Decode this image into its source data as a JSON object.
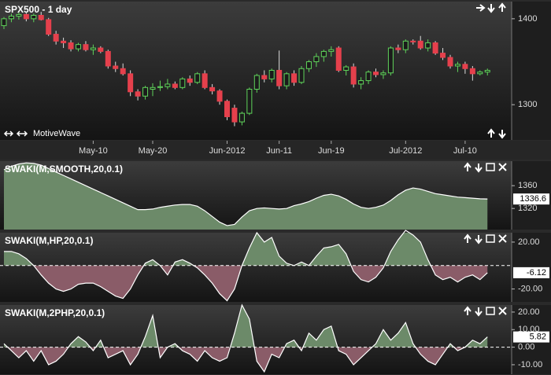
{
  "chart_data": [
    {
      "type": "candlestick",
      "title": "SPX500 - 1 day",
      "watermark": "MotiveWave",
      "categories": [
        null,
        null,
        null,
        null,
        null,
        null,
        null,
        null,
        null,
        null,
        null,
        null,
        "May-10",
        null,
        null,
        null,
        null,
        null,
        null,
        null,
        "May-20",
        null,
        null,
        null,
        null,
        null,
        null,
        null,
        null,
        null,
        "Jun-2012",
        null,
        null,
        null,
        null,
        null,
        null,
        "Jun-11",
        null,
        null,
        null,
        null,
        null,
        null,
        "Jun-19",
        null,
        null,
        null,
        null,
        null,
        null,
        null,
        null,
        null,
        "Jul-2012",
        null,
        null,
        null,
        null,
        null,
        null,
        null,
        "Jul-10",
        null,
        null,
        null
      ],
      "open": [
        1392,
        1400,
        1403,
        1405,
        1400,
        1404,
        1399,
        1382,
        1374,
        1372,
        1365,
        1370,
        1364,
        1366,
        1362,
        1345,
        1342,
        1336,
        1315,
        1310,
        1318,
        1320,
        1321,
        1324,
        1320,
        1330,
        1326,
        1336,
        1320,
        1316,
        1304,
        1296,
        1280,
        1290,
        1318,
        1334,
        1330,
        1340,
        1322,
        1336,
        1326,
        1342,
        1350,
        1356,
        1362,
        1366,
        1340,
        1344,
        1324,
        1328,
        1338,
        1335,
        1337,
        1366,
        1364,
        1374,
        1374,
        1366,
        1372,
        1360,
        1355,
        1345,
        1347,
        1342,
        1336,
        1338
      ],
      "high": [
        1402,
        1406,
        1408,
        1407,
        1406,
        1408,
        1401,
        1386,
        1378,
        1375,
        1372,
        1374,
        1370,
        1368,
        1364,
        1350,
        1348,
        1340,
        1318,
        1322,
        1325,
        1328,
        1330,
        1327,
        1332,
        1334,
        1338,
        1340,
        1324,
        1318,
        1306,
        1300,
        1292,
        1320,
        1336,
        1340,
        1342,
        1363,
        1338,
        1340,
        1345,
        1352,
        1360,
        1364,
        1368,
        1368,
        1346,
        1348,
        1332,
        1340,
        1342,
        1340,
        1368,
        1370,
        1376,
        1376,
        1380,
        1376,
        1374,
        1366,
        1358,
        1350,
        1350,
        1345,
        1340,
        1342
      ],
      "low": [
        1388,
        1396,
        1399,
        1397,
        1396,
        1398,
        1380,
        1370,
        1366,
        1362,
        1362,
        1362,
        1358,
        1360,
        1342,
        1338,
        1334,
        1310,
        1305,
        1306,
        1310,
        1316,
        1318,
        1318,
        1318,
        1322,
        1324,
        1318,
        1312,
        1300,
        1282,
        1275,
        1276,
        1288,
        1314,
        1326,
        1326,
        1318,
        1318,
        1322,
        1324,
        1338,
        1344,
        1350,
        1356,
        1338,
        1334,
        1320,
        1318,
        1324,
        1332,
        1330,
        1334,
        1360,
        1360,
        1370,
        1364,
        1362,
        1358,
        1352,
        1342,
        1338,
        1336,
        1328,
        1334,
        1334
      ],
      "close": [
        1400,
        1403,
        1405,
        1400,
        1404,
        1399,
        1382,
        1374,
        1372,
        1365,
        1370,
        1364,
        1366,
        1362,
        1345,
        1342,
        1336,
        1315,
        1310,
        1320,
        1320,
        1321,
        1324,
        1320,
        1330,
        1326,
        1336,
        1320,
        1316,
        1304,
        1286,
        1280,
        1290,
        1318,
        1334,
        1330,
        1340,
        1322,
        1336,
        1326,
        1342,
        1350,
        1356,
        1362,
        1364,
        1340,
        1344,
        1324,
        1328,
        1338,
        1335,
        1337,
        1366,
        1364,
        1374,
        1373,
        1366,
        1372,
        1360,
        1355,
        1345,
        1347,
        1342,
        1336,
        1338,
        1340
      ],
      "ylim": [
        1259,
        1420
      ],
      "yticks": [
        1300,
        1400
      ],
      "colors": {
        "up": "#5fd35a",
        "down": "#e5404c"
      }
    },
    {
      "type": "area",
      "title": "SWAKI(M,SMOOTH,20,0.1)",
      "values": [
        1388,
        1394,
        1398,
        1400,
        1399,
        1396,
        1390,
        1384,
        1378,
        1372,
        1366,
        1360,
        1354,
        1348,
        1342,
        1336,
        1330,
        1324,
        1318,
        1318,
        1319,
        1322,
        1324,
        1326,
        1327,
        1327,
        1324,
        1316,
        1306,
        1296,
        1290,
        1292,
        1305,
        1316,
        1320,
        1321,
        1320,
        1319,
        1320,
        1325,
        1328,
        1332,
        1338,
        1343,
        1345,
        1342,
        1336,
        1328,
        1322,
        1320,
        1322,
        1326,
        1334,
        1344,
        1352,
        1356,
        1354,
        1350,
        1346,
        1344,
        1342,
        1340,
        1339,
        1338,
        1337,
        1336.6
      ],
      "ylim": [
        1283,
        1403
      ],
      "yticks": [
        1320,
        1360
      ],
      "colors": {
        "line": "#ffffff",
        "above": "#6c8a69"
      }
    },
    {
      "type": "area",
      "title": "SWAKI(M,HP,20,0.1)",
      "values": [
        12,
        12,
        10,
        6,
        0,
        -8,
        -15,
        -20,
        -22,
        -20,
        -16,
        -15,
        -15,
        -18,
        -22,
        -26,
        -28,
        -20,
        -8,
        2,
        5,
        0,
        -8,
        3,
        5,
        2,
        -2,
        -8,
        -15,
        -24,
        -30,
        -20,
        0,
        15,
        28,
        20,
        24,
        8,
        2,
        0,
        3,
        0,
        8,
        15,
        16,
        18,
        10,
        -5,
        -12,
        -14,
        -10,
        -2,
        12,
        22,
        30,
        26,
        20,
        5,
        -8,
        -12,
        -10,
        -14,
        -10,
        -8,
        -12,
        -6.12
      ],
      "ylim": [
        -31,
        28
      ],
      "yticks": [
        {
          "value": -20,
          "label": "-20.00"
        },
        {
          "value": 20,
          "label": "20.00"
        }
      ],
      "reference_line": 0,
      "colors": {
        "line": "#ffffff",
        "above": "#6c8a69",
        "below": "#8a5c68"
      }
    },
    {
      "type": "area",
      "title": "SWAKI(M,2PHP,20,0.1)",
      "values": [
        2,
        -2,
        -6,
        -2,
        -8,
        -2,
        -10,
        -8,
        -4,
        2,
        6,
        3,
        -2,
        4,
        -6,
        -4,
        -2,
        -10,
        -4,
        6,
        18,
        -6,
        0,
        2,
        -2,
        -4,
        -8,
        -2,
        -6,
        -8,
        -6,
        8,
        24,
        16,
        -8,
        -14,
        -4,
        -6,
        2,
        4,
        -2,
        8,
        4,
        10,
        12,
        -2,
        -4,
        -10,
        -6,
        -2,
        2,
        10,
        4,
        8,
        14,
        2,
        -4,
        -8,
        -10,
        -4,
        2,
        -2,
        0,
        4,
        2,
        5.82
      ],
      "ylim": [
        -15.4,
        24
      ],
      "yticks": [
        {
          "value": -10,
          "label": "-10.00"
        },
        {
          "value": 0,
          "label": "0.00"
        },
        {
          "value": 10,
          "label": "10.00"
        },
        {
          "value": 20,
          "label": "20.00"
        }
      ],
      "reference_line": 0,
      "colors": {
        "line": "#ffffff",
        "above": "#6c8a69",
        "below": "#8a5c68"
      }
    }
  ]
}
